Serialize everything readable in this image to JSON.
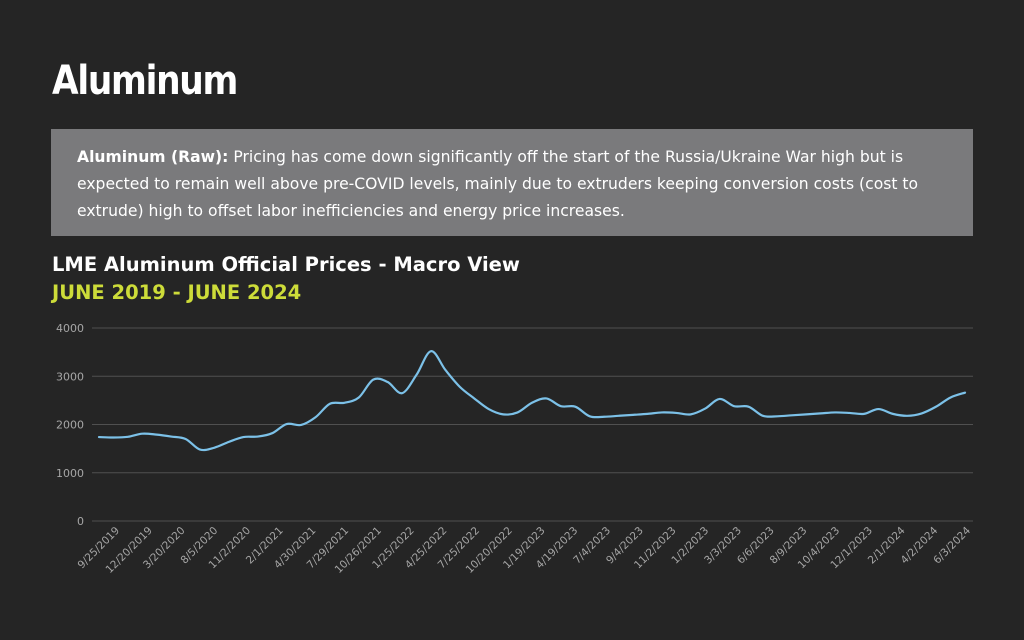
{
  "page": {
    "heading": "Aluminum",
    "note": {
      "label": "Aluminum (Raw):",
      "text": " Pricing has come down significantly off the start of the Russia/Ukraine War high but is expected to remain well above pre-COVID levels, mainly due to extruders keeping conversion costs (cost to extrude) high to offset labor inefficiencies and energy price increases."
    }
  },
  "colors": {
    "background": "#252525",
    "note_box": "#7a7a7c",
    "subtitle": "#cddc39",
    "line": "#7cc1e8",
    "grid": "#505050",
    "axis_text": "#a6a6a6"
  },
  "chart_data": {
    "type": "line",
    "title": "LME Aluminum Official Prices - Macro View",
    "subtitle": "JUNE 2019 - JUNE 2024",
    "xlabel": "",
    "ylabel": "",
    "ylim": [
      0,
      4000
    ],
    "yticks": [
      0,
      1000,
      2000,
      3000,
      4000
    ],
    "grid": true,
    "legend": "none",
    "tick_labels": [
      "9/25/2019",
      "12/20/2019",
      "3/20/2020",
      "8/5/2020",
      "11/2/2020",
      "2/1/2021",
      "4/30/2021",
      "7/29/2021",
      "10/26/2021",
      "1/25/2022",
      "4/25/2022",
      "7/25/2022",
      "10/20/2022",
      "1/19/2023",
      "4/19/2023",
      "7/4/2023",
      "9/4/2023",
      "11/2/2023",
      "1/2/2023",
      "3/3/2023",
      "6/6/2023",
      "8/9/2023",
      "10/4/2023",
      "12/1/2023",
      "2/1/2024",
      "4/2/2024",
      "6/3/2024"
    ],
    "series": [
      {
        "values": [
          1740,
          1730,
          1745,
          1810,
          1790,
          1750,
          1700,
          1480,
          1520,
          1640,
          1740,
          1750,
          1820,
          2010,
          1990,
          2150,
          2430,
          2450,
          2560,
          2930,
          2880,
          2650,
          3030,
          3520,
          3130,
          2780,
          2540,
          2320,
          2210,
          2250,
          2450,
          2540,
          2380,
          2370,
          2170,
          2160,
          2180,
          2200,
          2220,
          2250,
          2240,
          2210,
          2330,
          2530,
          2380,
          2370,
          2180,
          2170,
          2190,
          2210,
          2230,
          2250,
          2240,
          2220,
          2320,
          2220,
          2180,
          2230,
          2370,
          2560,
          2660
        ]
      }
    ]
  }
}
